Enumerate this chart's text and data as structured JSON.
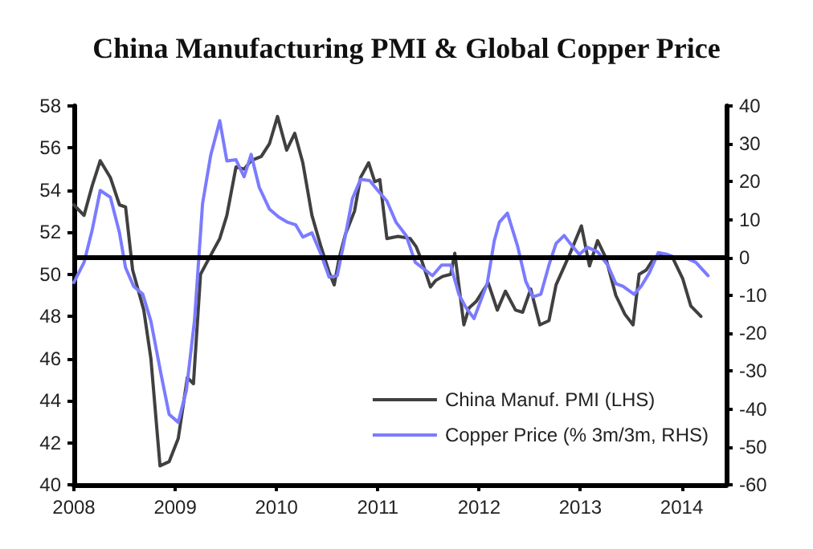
{
  "chart_data": {
    "type": "line",
    "title": "China Manufacturing PMI & Global Copper Price",
    "xlim": [
      2008,
      2014.44
    ],
    "xticks": [
      2008,
      2009,
      2010,
      2011,
      2012,
      2013,
      2014
    ],
    "ylim": [
      40,
      58
    ],
    "yticks": [
      40,
      42,
      44,
      46,
      48,
      50,
      52,
      54,
      56,
      58
    ],
    "y2lim": [
      -60,
      40
    ],
    "y2ticks": [
      -60,
      -50,
      -40,
      -30,
      -20,
      -10,
      0,
      10,
      20,
      30,
      40
    ],
    "grid": false,
    "legend": "bottom right",
    "marker": "none",
    "line_style": "solid",
    "ref_lines": [
      {
        "axis": "y2",
        "value": 0,
        "color": "#000000"
      }
    ],
    "series": [
      {
        "name": "China Manuf. PMI (LHS)",
        "color": "#404040",
        "x": [
          2008.0,
          2008.1,
          2008.18,
          2008.26,
          2008.36,
          2008.45,
          2008.51,
          2008.58,
          2008.69,
          2008.76,
          2008.85,
          2008.94,
          2009.03,
          2009.12,
          2009.18,
          2009.25,
          2009.35,
          2009.44,
          2009.51,
          2009.6,
          2009.68,
          2009.75,
          2009.85,
          2009.93,
          2010.01,
          2010.1,
          2010.18,
          2010.26,
          2010.35,
          2010.44,
          2010.52,
          2010.57,
          2010.62,
          2010.68,
          2010.77,
          2010.83,
          2010.91,
          2010.97,
          2011.02,
          2011.09,
          2011.2,
          2011.32,
          2011.38,
          2011.43,
          2011.52,
          2011.57,
          2011.64,
          2011.72,
          2011.76,
          2011.85,
          2011.9,
          2011.97,
          2012.09,
          2012.18,
          2012.26,
          2012.36,
          2012.43,
          2012.51,
          2012.6,
          2012.69,
          2012.76,
          2012.89,
          2013.01,
          2013.09,
          2013.17,
          2013.25,
          2013.35,
          2013.44,
          2013.52,
          2013.58,
          2013.65,
          2013.73,
          2013.82,
          2013.91,
          2014.01,
          2014.09,
          2014.19
        ],
        "values": [
          53.3,
          52.8,
          54.2,
          55.4,
          54.6,
          53.3,
          53.2,
          50.2,
          48.3,
          46.0,
          40.9,
          41.1,
          42.2,
          45.1,
          44.8,
          50.0,
          50.9,
          51.7,
          52.8,
          55.1,
          55.0,
          55.4,
          55.6,
          56.2,
          57.5,
          55.9,
          56.7,
          55.3,
          52.8,
          51.3,
          50.1,
          49.5,
          50.8,
          51.9,
          53.0,
          54.6,
          55.3,
          54.4,
          54.5,
          51.7,
          51.8,
          51.7,
          51.3,
          50.7,
          49.4,
          49.7,
          49.9,
          50.0,
          51.0,
          47.6,
          48.4,
          48.7,
          49.6,
          48.3,
          49.2,
          48.3,
          48.2,
          49.3,
          47.6,
          47.8,
          49.5,
          50.9,
          52.3,
          50.4,
          51.6,
          50.8,
          49.0,
          48.1,
          47.6,
          50.0,
          50.2,
          50.8,
          50.9,
          50.8,
          49.8,
          48.5,
          48.0
        ]
      },
      {
        "name": "Copper Price (% 3m/3m, RHS)",
        "color": "#7b7bff",
        "axis": "y2",
        "x": [
          2008.0,
          2008.1,
          2008.18,
          2008.26,
          2008.36,
          2008.45,
          2008.51,
          2008.59,
          2008.68,
          2008.76,
          2008.86,
          2008.94,
          2009.03,
          2009.11,
          2009.19,
          2009.27,
          2009.35,
          2009.44,
          2009.51,
          2009.6,
          2009.68,
          2009.75,
          2009.83,
          2009.93,
          2010.02,
          2010.11,
          2010.19,
          2010.26,
          2010.35,
          2010.44,
          2010.52,
          2010.6,
          2010.68,
          2010.75,
          2010.83,
          2010.92,
          2011.0,
          2011.09,
          2011.18,
          2011.28,
          2011.37,
          2011.44,
          2011.54,
          2011.63,
          2011.72,
          2011.8,
          2011.87,
          2011.95,
          2012.08,
          2012.15,
          2012.2,
          2012.28,
          2012.38,
          2012.46,
          2012.53,
          2012.61,
          2012.69,
          2012.76,
          2012.84,
          2012.92,
          2012.99,
          2013.07,
          2013.17,
          2013.27,
          2013.35,
          2013.42,
          2013.53,
          2013.6,
          2013.68,
          2013.77,
          2013.86,
          2013.93,
          2014.04,
          2014.14,
          2014.26
        ],
        "values": [
          -6.6,
          -1.3,
          7.2,
          17.7,
          15.9,
          6.5,
          -2.7,
          -7.6,
          -9.7,
          -16.8,
          -30.8,
          -41.4,
          -43.5,
          -35.1,
          -16.8,
          14.2,
          26.9,
          36.1,
          25.5,
          25.8,
          21.3,
          27.2,
          18.5,
          12.8,
          10.7,
          9.3,
          8.6,
          5.4,
          6.5,
          0.8,
          -5.2,
          -4.8,
          5.8,
          15.6,
          20.6,
          20.3,
          17.7,
          14.9,
          9.3,
          5.8,
          -1.3,
          -2.7,
          -4.8,
          -2.0,
          -2.0,
          -9.7,
          -13.2,
          -16.1,
          -6.9,
          4.4,
          9.3,
          11.7,
          3.0,
          -6.2,
          -10.4,
          -9.7,
          -2.0,
          3.7,
          5.8,
          3.0,
          0.8,
          2.7,
          1.5,
          -2.0,
          -6.9,
          -7.6,
          -9.7,
          -7.6,
          -4.1,
          1.3,
          0.8,
          0.1,
          -0.1,
          -1.3,
          -4.8
        ]
      }
    ]
  }
}
